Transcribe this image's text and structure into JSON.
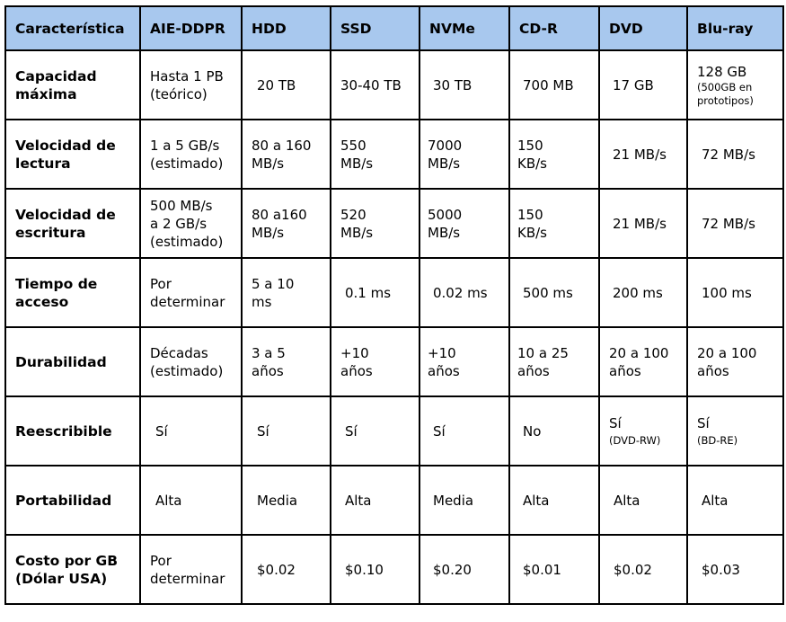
{
  "headers": [
    "Característica",
    "AIE-DDPR",
    "HDD",
    "SSD",
    "NVMe",
    "CD-R",
    "DVD",
    "Blu-ray"
  ],
  "rows": [
    {
      "label": [
        "Capacidad",
        "máxima"
      ],
      "cells": [
        [
          "Hasta 1 PB",
          "(teórico)"
        ],
        [
          "20 TB"
        ],
        [
          "30-40 TB"
        ],
        [
          "30 TB"
        ],
        [
          "700 MB"
        ],
        [
          "17 GB"
        ],
        [
          "128 GB",
          "(500GB en",
          "prototipos)"
        ]
      ]
    },
    {
      "label": [
        "Velocidad de",
        "lectura"
      ],
      "cells": [
        [
          "1 a 5 GB/s",
          "(estimado)"
        ],
        [
          "80 a 160",
          "MB/s"
        ],
        [
          "550",
          "MB/s"
        ],
        [
          "7000",
          "MB/s"
        ],
        [
          "150",
          "KB/s"
        ],
        [
          "21 MB/s"
        ],
        [
          "72 MB/s"
        ]
      ]
    },
    {
      "label": [
        "Velocidad de",
        "escritura"
      ],
      "cells": [
        [
          "500 MB/s",
          "a 2 GB/s",
          "(estimado)"
        ],
        [
          "80 a160",
          "MB/s"
        ],
        [
          "520",
          "MB/s"
        ],
        [
          "5000",
          "MB/s"
        ],
        [
          "150",
          "KB/s"
        ],
        [
          "21 MB/s"
        ],
        [
          "72 MB/s"
        ]
      ]
    },
    {
      "label": [
        "Tiempo de",
        "acceso"
      ],
      "cells": [
        [
          "Por",
          "determinar"
        ],
        [
          "5 a 10",
          "ms"
        ],
        [
          "0.1 ms"
        ],
        [
          "0.02 ms"
        ],
        [
          "500 ms"
        ],
        [
          "200 ms"
        ],
        [
          "100 ms"
        ]
      ]
    },
    {
      "label": [
        "Durabilidad"
      ],
      "cells": [
        [
          "Décadas",
          "(estimado)"
        ],
        [
          "3 a 5",
          "años"
        ],
        [
          "+10",
          "años"
        ],
        [
          "+10",
          "años"
        ],
        [
          "10 a 25",
          "años"
        ],
        [
          "20 a 100",
          "años"
        ],
        [
          "20 a 100",
          "años"
        ]
      ]
    },
    {
      "label": [
        "Reescribible"
      ],
      "cells": [
        [
          "Sí"
        ],
        [
          "Sí"
        ],
        [
          "Sí"
        ],
        [
          "Sí"
        ],
        [
          "No"
        ],
        [
          "Sí",
          "(DVD-RW)"
        ],
        [
          "Sí",
          "(BD-RE)"
        ]
      ]
    },
    {
      "label": [
        "Portabilidad"
      ],
      "cells": [
        [
          "Alta"
        ],
        [
          "Media"
        ],
        [
          "Alta"
        ],
        [
          "Media"
        ],
        [
          "Alta"
        ],
        [
          "Alta"
        ],
        [
          "Alta"
        ]
      ]
    },
    {
      "label": [
        "Costo por GB",
        "(Dólar USA)"
      ],
      "cells": [
        [
          "Por",
          "determinar"
        ],
        [
          "$0.02"
        ],
        [
          "$0.10"
        ],
        [
          "$0.20"
        ],
        [
          "$0.01"
        ],
        [
          "$0.02"
        ],
        [
          "$0.03"
        ]
      ]
    }
  ]
}
